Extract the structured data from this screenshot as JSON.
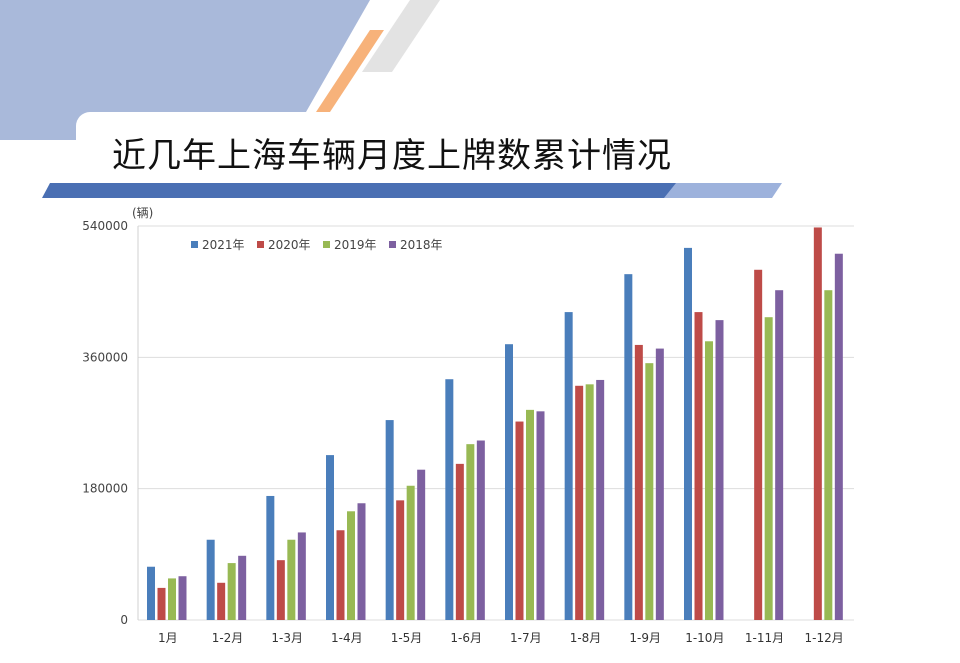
{
  "page": {
    "title": "近几年上海车辆月度上牌数累计情况"
  },
  "colors": {
    "background_band": "#a9b9da",
    "accent_orange": "#f7b27a",
    "accent_gray": "#e3e3e3",
    "divider_blue": "#4a6fb3",
    "divider_light": "#9db2dc"
  },
  "chart_data": {
    "type": "bar",
    "title": "",
    "ylabel": "(辆)",
    "xlabel": "",
    "ylim": [
      0,
      540000
    ],
    "yticks": [
      0,
      180000,
      360000,
      540000
    ],
    "grid": true,
    "legend_position": "top-left",
    "categories": [
      "1月",
      "1-2月",
      "1-3月",
      "1-4月",
      "1-5月",
      "1-6月",
      "1-7月",
      "1-8月",
      "1-9月",
      "1-10月",
      "1-11月",
      "1-12月"
    ],
    "series": [
      {
        "name": "2021年",
        "color": "#4a7ebb",
        "values": [
          73000,
          110000,
          170000,
          226000,
          274000,
          330000,
          378000,
          422000,
          474000,
          510000,
          null,
          null
        ]
      },
      {
        "name": "2020年",
        "color": "#be4b48",
        "values": [
          44000,
          51000,
          82000,
          123000,
          164000,
          214000,
          272000,
          321000,
          377000,
          422000,
          480000,
          538000
        ]
      },
      {
        "name": "2019年",
        "color": "#98b954",
        "values": [
          57000,
          78000,
          110000,
          149000,
          184000,
          241000,
          288000,
          323000,
          352000,
          382000,
          415000,
          452000
        ]
      },
      {
        "name": "2018年",
        "color": "#7d60a0",
        "values": [
          60000,
          88000,
          120000,
          160000,
          206000,
          246000,
          286000,
          329000,
          372000,
          411000,
          452000,
          502000
        ]
      }
    ]
  }
}
